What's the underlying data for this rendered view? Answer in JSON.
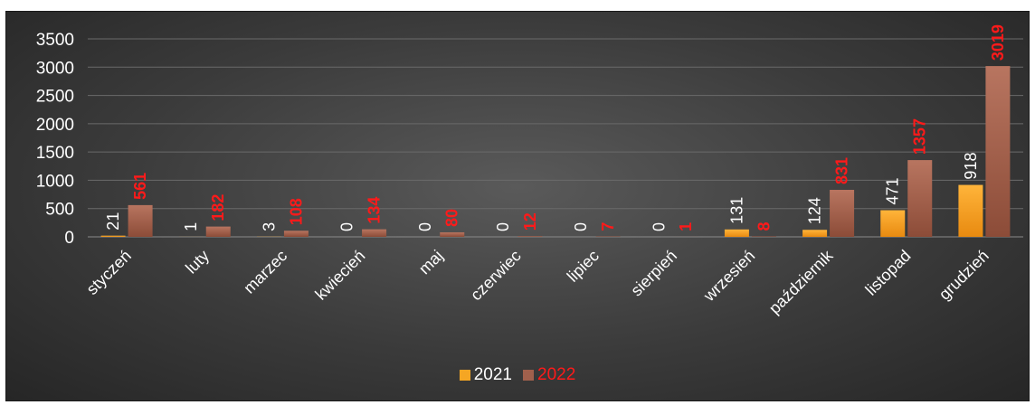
{
  "chart_data": {
    "type": "bar",
    "categories": [
      "styczeń",
      "luty",
      "marzec",
      "kwiecień",
      "maj",
      "czerwiec",
      "lipiec",
      "sierpień",
      "wrzesień",
      "październik",
      "listopad",
      "grudzień"
    ],
    "series": [
      {
        "name": "2021",
        "values": [
          21,
          1,
          3,
          0,
          0,
          0,
          0,
          0,
          131,
          124,
          471,
          918
        ],
        "color": "#f5a623",
        "label_color": "#ffffff"
      },
      {
        "name": "2022",
        "values": [
          561,
          182,
          108,
          134,
          80,
          12,
          7,
          1,
          8,
          831,
          1357,
          3019
        ],
        "color": "#a0604c",
        "label_color": "#ff1a1a"
      }
    ],
    "ylim": [
      0,
      3500
    ],
    "yticks": [
      0,
      500,
      1000,
      1500,
      2000,
      2500,
      3000,
      3500
    ],
    "grid": true,
    "legend": "bottom"
  }
}
